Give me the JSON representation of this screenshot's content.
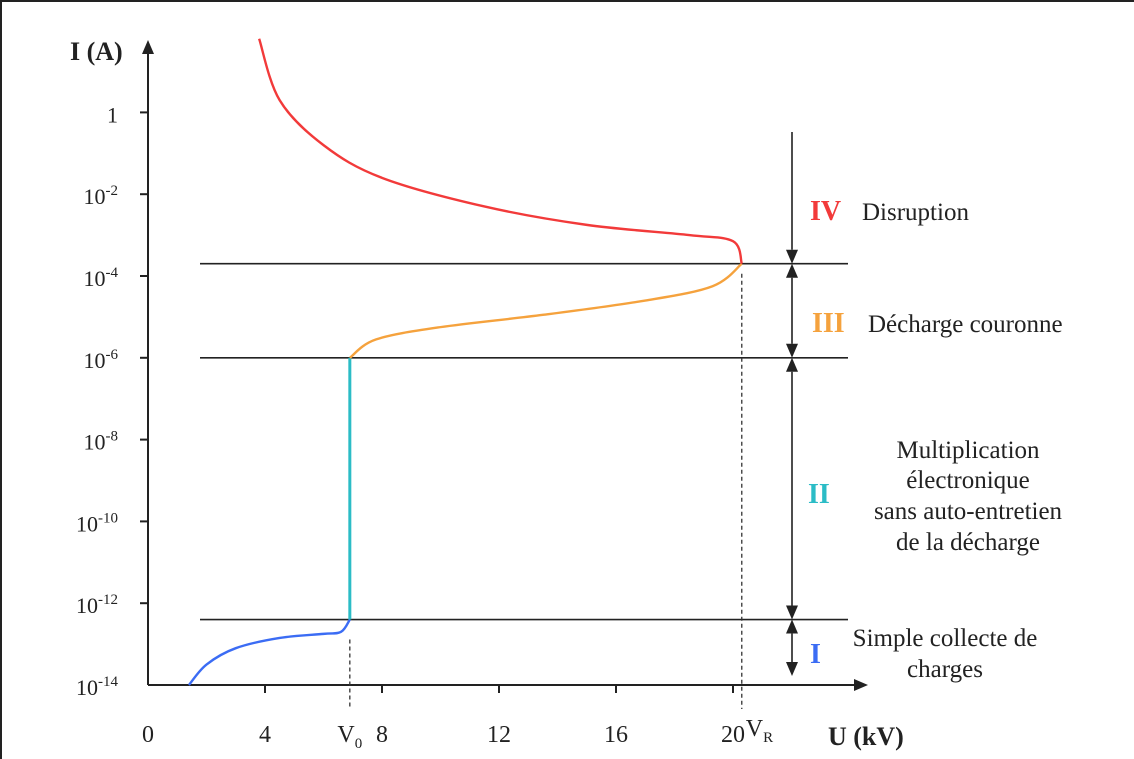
{
  "chart_data": {
    "type": "line",
    "title": "",
    "xlabel": "U (kV)",
    "ylabel": "I (A)",
    "x_ticks": [
      "0",
      "4",
      "8",
      "12",
      "16",
      "20"
    ],
    "y_ticks": [
      {
        "base": "1",
        "exp": ""
      },
      {
        "base": "10",
        "exp": "-2"
      },
      {
        "base": "10",
        "exp": "-4"
      },
      {
        "base": "10",
        "exp": "-6"
      },
      {
        "base": "10",
        "exp": "-8"
      },
      {
        "base": "10",
        "exp": "-10"
      },
      {
        "base": "10",
        "exp": "-12"
      },
      {
        "base": "10",
        "exp": "-14"
      }
    ],
    "scale": {
      "x": "linear",
      "y": "log10"
    },
    "xlim": [
      0,
      24
    ],
    "ylim_log10": [
      -14,
      2
    ],
    "markers": {
      "v0": {
        "base": "V",
        "sub": "0",
        "x": 6.9
      },
      "vr": {
        "base": "V",
        "sub": "R",
        "x": 20.3
      }
    },
    "region_boundaries_log10": [
      -12.4,
      -6,
      -3.7
    ],
    "series": [
      {
        "region": "I",
        "color": "#3b6cf4",
        "points": [
          [
            1.4,
            -14
          ],
          [
            2.0,
            -13.5
          ],
          [
            3.0,
            -13.1
          ],
          [
            4.5,
            -12.85
          ],
          [
            6.0,
            -12.75
          ],
          [
            6.6,
            -12.7
          ],
          [
            6.9,
            -12.4
          ]
        ]
      },
      {
        "region": "II",
        "color": "#2bbcc6",
        "points": [
          [
            6.9,
            -12.4
          ],
          [
            6.9,
            -6
          ]
        ]
      },
      {
        "region": "III",
        "color": "#f5a23d",
        "points": [
          [
            6.9,
            -6
          ],
          [
            7.8,
            -5.55
          ],
          [
            10.0,
            -5.25
          ],
          [
            13.5,
            -4.95
          ],
          [
            17.0,
            -4.6
          ],
          [
            19.3,
            -4.25
          ],
          [
            20.3,
            -3.7
          ]
        ]
      },
      {
        "region": "IV",
        "color": "#f23a3a",
        "points": [
          [
            20.3,
            -3.7
          ],
          [
            20.0,
            -3.15
          ],
          [
            18.5,
            -3.0
          ],
          [
            15.0,
            -2.75
          ],
          [
            11.5,
            -2.3
          ],
          [
            8.0,
            -1.6
          ],
          [
            6.0,
            -0.8
          ],
          [
            4.5,
            0.3
          ],
          [
            3.8,
            1.8
          ]
        ]
      }
    ],
    "regions": [
      {
        "numeral": "IV",
        "color": "#f23a3a",
        "lines": [
          "Disruption"
        ]
      },
      {
        "numeral": "III",
        "color": "#f5a23d",
        "lines": [
          "Décharge couronne"
        ]
      },
      {
        "numeral": "II",
        "color": "#2bbcc6",
        "lines": [
          "Multiplication",
          "électronique",
          "sans auto-entretien",
          "de la décharge"
        ]
      },
      {
        "numeral": "I",
        "color": "#3b6cf4",
        "lines": [
          "Simple collecte de",
          "charges"
        ]
      }
    ],
    "grid": false,
    "legend": "none"
  }
}
